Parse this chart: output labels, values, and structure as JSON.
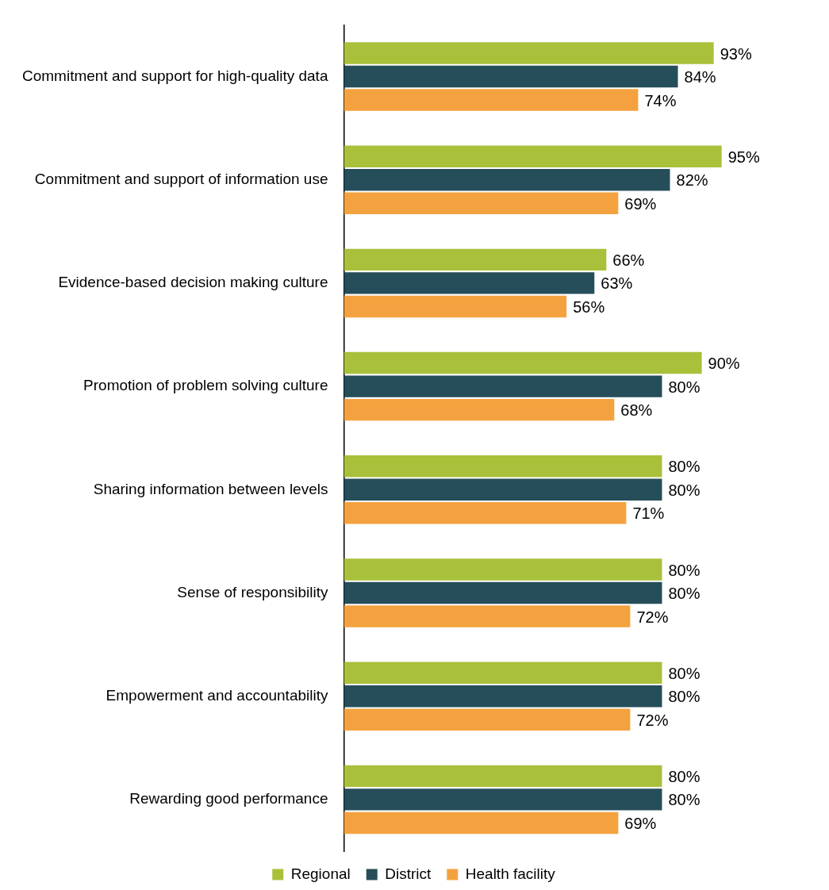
{
  "chart_data": {
    "type": "bar",
    "orientation": "horizontal",
    "legend": "bottom",
    "categories": [
      "Commitment and support for high-quality data",
      "Commitment and support of information use",
      "Evidence-based decision making culture",
      "Promotion of problem solving culture",
      "Sharing information between levels",
      "Sense of responsibility",
      "Empowerment and accountability",
      "Rewarding good performance"
    ],
    "series": [
      {
        "name": "Regional",
        "color": "#a9c03b",
        "values": [
          93,
          95,
          66,
          90,
          80,
          80,
          80,
          80
        ],
        "value_labels": [
          "93%",
          "95%",
          "66%",
          "90%",
          "80%",
          "80%",
          "80%",
          "80%"
        ]
      },
      {
        "name": "District",
        "color": "#264e5a",
        "values": [
          84,
          82,
          63,
          80,
          80,
          80,
          80,
          80
        ],
        "value_labels": [
          "84%",
          "82%",
          "63%",
          "80%",
          "80%",
          "80%",
          "80%",
          "80%"
        ]
      },
      {
        "name": "Health facility",
        "color": "#f4a23f",
        "values": [
          74,
          69,
          56,
          68,
          71,
          72,
          72,
          69
        ],
        "value_labels": [
          "74%",
          "69%",
          "56%",
          "68%",
          "71%",
          "72%",
          "72%",
          "69%"
        ]
      }
    ]
  }
}
